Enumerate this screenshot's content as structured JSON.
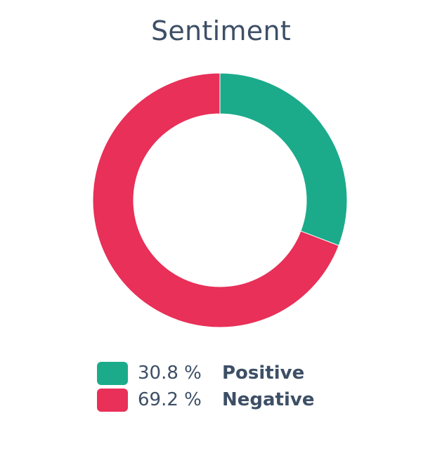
{
  "chart_data": {
    "type": "pie",
    "title": "Sentiment",
    "slices": [
      {
        "name": "Positive",
        "value": 30.8,
        "label": "30.8 %",
        "color": "#1bab8b"
      },
      {
        "name": "Negative",
        "value": 69.2,
        "label": "69.2 %",
        "color": "#e83058"
      }
    ],
    "legend": "bottom"
  }
}
